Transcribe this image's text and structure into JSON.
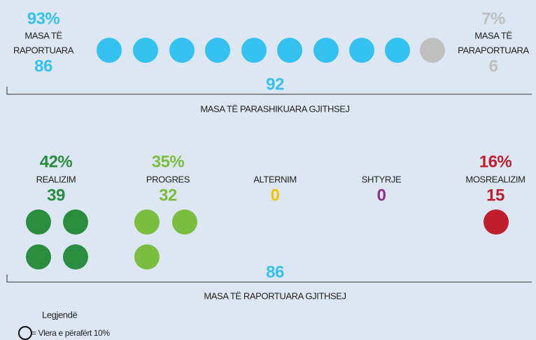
{
  "top": {
    "reported": {
      "percent": "93%",
      "label_1": "MASA TË",
      "label_2": "RAPORTUARA",
      "count": 86
    },
    "unreported": {
      "percent": "7%",
      "label_1": "MASA TË",
      "label_2": "PARAPORTUARA",
      "count": 6
    },
    "total": 92,
    "total_label": "MASA TË PARASHIKUARA GJITHSEJ"
  },
  "status": [
    {
      "percent": "42%",
      "label": "REALIZIM",
      "count": 39
    },
    {
      "percent": "35%",
      "label": "PROGRES",
      "count": 32
    },
    {
      "label": "ALTERNIM",
      "count": 0
    },
    {
      "label": "SHTYRJE",
      "count": 0
    },
    {
      "percent": "16%",
      "label": "MOSREALIZIM",
      "count": 15
    }
  ],
  "status_total": 86,
  "status_total_label": "MASA TË RAPORTUARA GJITHSEJ",
  "legend": {
    "title": "Legjendë",
    "text": "= Vlera e përafërt 10%"
  }
}
